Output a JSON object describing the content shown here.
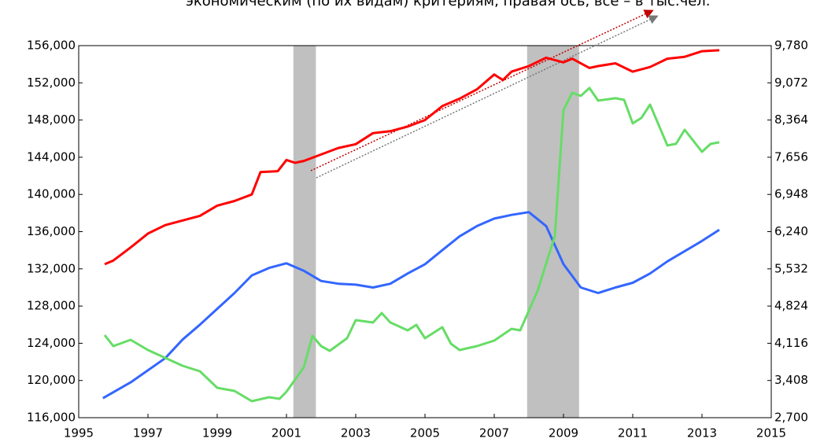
{
  "chart_data": {
    "type": "line",
    "subtitle": "экономическим (по их видам) критериям, правая ось, все – в тыс.чел.",
    "xlim": [
      1995,
      2015
    ],
    "xticks": [
      1995,
      1997,
      1999,
      2001,
      2003,
      2005,
      2007,
      2009,
      2011,
      2013,
      2015
    ],
    "ylim": [
      116000,
      156000
    ],
    "yticks": [
      {
        "value": 116000,
        "label": "116,000"
      },
      {
        "value": 120000,
        "label": "120,000"
      },
      {
        "value": 124000,
        "label": "124,000"
      },
      {
        "value": 128000,
        "label": "128,000"
      },
      {
        "value": 132000,
        "label": "132,000"
      },
      {
        "value": 136000,
        "label": "136,000"
      },
      {
        "value": 140000,
        "label": "140,000"
      },
      {
        "value": 144000,
        "label": "144,000"
      },
      {
        "value": 148000,
        "label": "148,000"
      },
      {
        "value": 152000,
        "label": "152,000"
      },
      {
        "value": 156000,
        "label": "156,000"
      }
    ],
    "y2lim": [
      2700,
      9780
    ],
    "y2ticks": [
      {
        "value": 2700,
        "label": "2,700"
      },
      {
        "value": 3408,
        "label": "3,408"
      },
      {
        "value": 4116,
        "label": "4,116"
      },
      {
        "value": 4824,
        "label": "4,824"
      },
      {
        "value": 5532,
        "label": "5,532"
      },
      {
        "value": 6240,
        "label": "6,240"
      },
      {
        "value": 6948,
        "label": "6,948"
      },
      {
        "value": 7656,
        "label": "7,656"
      },
      {
        "value": 8364,
        "label": "8,364"
      },
      {
        "value": 9072,
        "label": "9,072"
      },
      {
        "value": 9780,
        "label": "9,780"
      }
    ],
    "grid": false,
    "shaded": [
      [
        2001.2,
        2001.85
      ],
      [
        2007.95,
        2009.45
      ]
    ],
    "shade_color": "#c0c0c0",
    "series": [
      {
        "color": "#ff0000",
        "axis": "y",
        "x": [
          1995.75,
          1996,
          1996.5,
          1997,
          1997.5,
          1998,
          1998.5,
          1999,
          1999.5,
          2000,
          2000.25,
          2000.75,
          2001,
          2001.25,
          2001.5,
          2002,
          2002.5,
          2003,
          2003.5,
          2004,
          2004.5,
          2005,
          2005.5,
          2006,
          2006.5,
          2007,
          2007.25,
          2007.5,
          2008,
          2008.5,
          2009,
          2009.25,
          2009.75,
          2010,
          2010.5,
          2011,
          2011.5,
          2012,
          2012.5,
          2013,
          2013.5
        ],
        "values": [
          132500,
          132900,
          134300,
          135800,
          136700,
          137200,
          137700,
          138800,
          139300,
          140000,
          142400,
          142500,
          143700,
          143400,
          143600,
          144300,
          145000,
          145400,
          146600,
          146800,
          147300,
          148000,
          149500,
          150300,
          151300,
          152900,
          152300,
          153200,
          153800,
          154700,
          154200,
          154600,
          153600,
          153800,
          154100,
          153200,
          153700,
          154600,
          154800,
          155400,
          155500
        ]
      },
      {
        "color": "#3366ff",
        "axis": "y",
        "x": [
          1995.7,
          1996.5,
          1997.5,
          1998,
          1998.5,
          1999,
          1999.5,
          2000,
          2000.5,
          2001,
          2001.5,
          2002,
          2002.5,
          2003,
          2003.5,
          2004,
          2004.5,
          2005,
          2005.5,
          2006,
          2006.5,
          2007,
          2007.5,
          2008,
          2008.5,
          2009,
          2009.5,
          2010,
          2010.5,
          2011,
          2011.5,
          2012,
          2012.5,
          2013,
          2013.5
        ],
        "values": [
          118100,
          119800,
          122400,
          124400,
          126000,
          127700,
          129400,
          131300,
          132100,
          132600,
          131800,
          130700,
          130400,
          130300,
          130000,
          130400,
          131500,
          132500,
          134000,
          135500,
          136600,
          137400,
          137800,
          138100,
          136600,
          132500,
          130000,
          129400,
          130000,
          130500,
          131500,
          132800,
          133900,
          135000,
          136200
        ]
      },
      {
        "color": "#66dd66",
        "axis": "y2",
        "x": [
          1995.75,
          1996,
          1996.5,
          1997,
          1997.5,
          1998,
          1998.5,
          1999,
          1999.5,
          2000,
          2000.5,
          2000.8,
          2001,
          2001.5,
          2001.75,
          2002,
          2002.25,
          2002.75,
          2003,
          2003.5,
          2003.75,
          2004,
          2004.5,
          2004.75,
          2005,
          2005.5,
          2005.75,
          2006,
          2006.5,
          2007,
          2007.5,
          2007.75,
          2008.25,
          2008.75,
          2009,
          2009.25,
          2009.5,
          2009.75,
          2010,
          2010.5,
          2010.75,
          2011,
          2011.25,
          2011.5,
          2012,
          2012.25,
          2012.5,
          2013,
          2013.25,
          2013.5
        ],
        "values": [
          4272,
          4062,
          4182,
          3987,
          3838,
          3688,
          3583,
          3269,
          3209,
          3014,
          3089,
          3059,
          3194,
          3658,
          4257,
          4062,
          3972,
          4212,
          4556,
          4511,
          4691,
          4511,
          4362,
          4466,
          4212,
          4422,
          4107,
          3987,
          4062,
          4167,
          4392,
          4362,
          5110,
          6158,
          8553,
          8883,
          8823,
          8973,
          8733,
          8778,
          8748,
          8299,
          8404,
          8658,
          7880,
          7910,
          8179,
          7760,
          7910,
          7940
        ]
      }
    ]
  }
}
